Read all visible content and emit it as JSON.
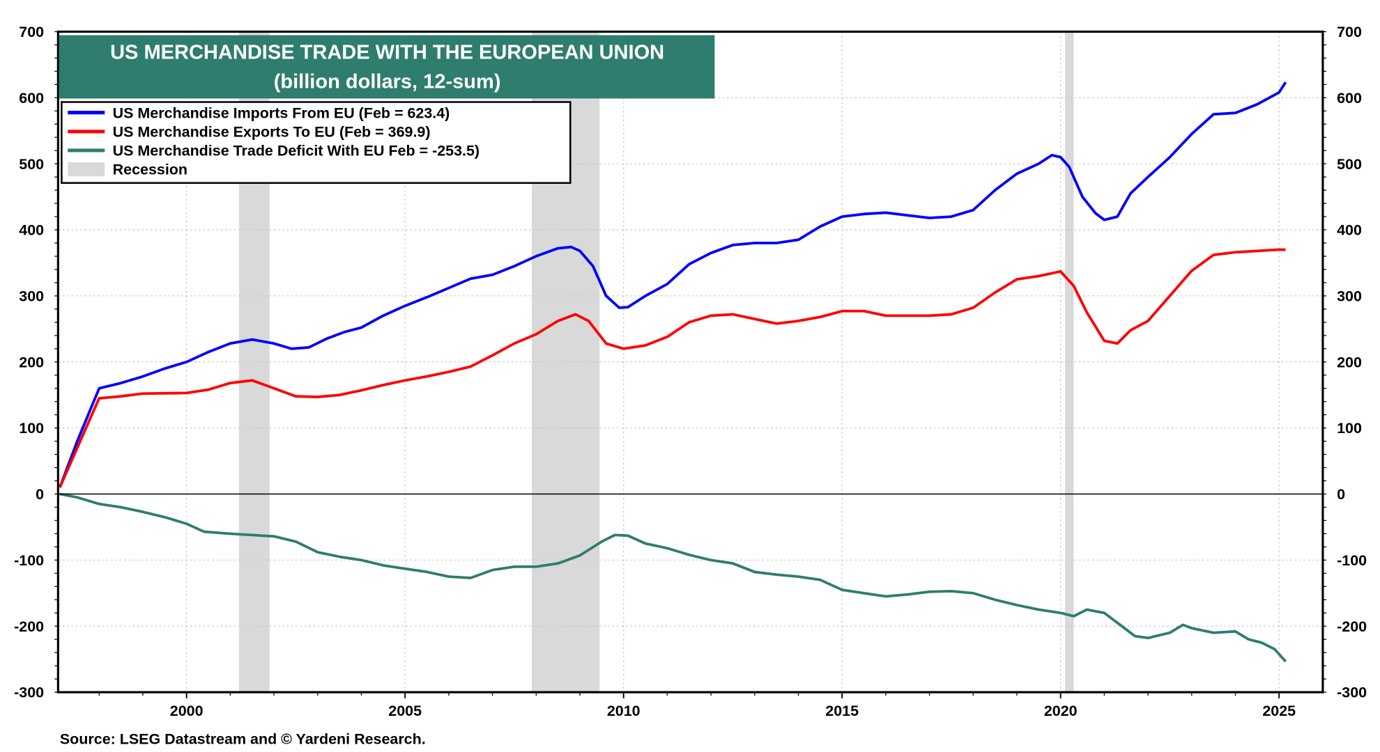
{
  "chart_data": {
    "type": "line",
    "title": "US MERCHANDISE TRADE WITH THE EUROPEAN UNION",
    "subtitle": "(billion dollars, 12-sum)",
    "source": "Source: LSEG Datastream and © Yardeni Research.",
    "xlim": [
      1997.06,
      2026.0
    ],
    "ylim": [
      -300,
      700
    ],
    "x_ticks": [
      2000,
      2005,
      2010,
      2015,
      2020,
      2025
    ],
    "y_ticks": [
      -300,
      -200,
      -100,
      0,
      100,
      200,
      300,
      400,
      500,
      600,
      700
    ],
    "grid": true,
    "legend_placement": "top-left",
    "colors": {
      "imports": "#0000ff",
      "exports": "#ff0000",
      "deficit": "#2e7d6e",
      "recession": "#d9d9d9",
      "title_bg": "#2e7d6e"
    },
    "recessions": [
      [
        2001.2,
        2001.9
      ],
      [
        2007.9,
        2009.45
      ],
      [
        2020.1,
        2020.3
      ]
    ],
    "legend": [
      {
        "key": "imports",
        "label": "US Merchandise Imports From EU (Feb = 623.4)"
      },
      {
        "key": "exports",
        "label": "US Merchandise Exports To EU (Feb = 369.9)"
      },
      {
        "key": "deficit",
        "label": "US Merchandise Trade Deficit With EU  Feb = -253.5)"
      },
      {
        "key": "recession",
        "label": "Recession"
      }
    ],
    "series": [
      {
        "name": "imports",
        "points": [
          [
            1997.1,
            10
          ],
          [
            1997.5,
            80
          ],
          [
            1998.0,
            160
          ],
          [
            1998.5,
            168
          ],
          [
            1999.0,
            178
          ],
          [
            1999.5,
            190
          ],
          [
            2000.0,
            200
          ],
          [
            2000.5,
            215
          ],
          [
            2001.0,
            228
          ],
          [
            2001.5,
            234
          ],
          [
            2002.0,
            228
          ],
          [
            2002.4,
            220
          ],
          [
            2002.8,
            222
          ],
          [
            2003.2,
            235
          ],
          [
            2003.6,
            245
          ],
          [
            2004.0,
            252
          ],
          [
            2004.5,
            270
          ],
          [
            2005.0,
            285
          ],
          [
            2005.5,
            298
          ],
          [
            2006.0,
            312
          ],
          [
            2006.5,
            326
          ],
          [
            2007.0,
            332
          ],
          [
            2007.5,
            345
          ],
          [
            2008.0,
            360
          ],
          [
            2008.5,
            372
          ],
          [
            2008.8,
            374
          ],
          [
            2009.0,
            368
          ],
          [
            2009.3,
            345
          ],
          [
            2009.6,
            300
          ],
          [
            2009.9,
            282
          ],
          [
            2010.1,
            283
          ],
          [
            2010.5,
            300
          ],
          [
            2011.0,
            318
          ],
          [
            2011.5,
            348
          ],
          [
            2012.0,
            365
          ],
          [
            2012.5,
            377
          ],
          [
            2013.0,
            380
          ],
          [
            2013.5,
            380
          ],
          [
            2014.0,
            385
          ],
          [
            2014.5,
            405
          ],
          [
            2015.0,
            420
          ],
          [
            2015.5,
            424
          ],
          [
            2016.0,
            426
          ],
          [
            2016.5,
            422
          ],
          [
            2017.0,
            418
          ],
          [
            2017.5,
            420
          ],
          [
            2018.0,
            430
          ],
          [
            2018.5,
            460
          ],
          [
            2019.0,
            485
          ],
          [
            2019.5,
            500
          ],
          [
            2019.8,
            513
          ],
          [
            2020.0,
            510
          ],
          [
            2020.2,
            495
          ],
          [
            2020.5,
            450
          ],
          [
            2020.8,
            425
          ],
          [
            2021.0,
            415
          ],
          [
            2021.3,
            420
          ],
          [
            2021.6,
            455
          ],
          [
            2022.0,
            480
          ],
          [
            2022.5,
            510
          ],
          [
            2023.0,
            545
          ],
          [
            2023.5,
            575
          ],
          [
            2024.0,
            577
          ],
          [
            2024.5,
            590
          ],
          [
            2025.0,
            608
          ],
          [
            2025.15,
            623.4
          ]
        ]
      },
      {
        "name": "exports",
        "points": [
          [
            1997.1,
            10
          ],
          [
            1997.5,
            70
          ],
          [
            1998.0,
            145
          ],
          [
            1998.5,
            148
          ],
          [
            1999.0,
            152
          ],
          [
            2000.0,
            153
          ],
          [
            2000.5,
            158
          ],
          [
            2001.0,
            168
          ],
          [
            2001.5,
            172
          ],
          [
            2002.0,
            160
          ],
          [
            2002.5,
            148
          ],
          [
            2003.0,
            147
          ],
          [
            2003.5,
            150
          ],
          [
            2004.0,
            157
          ],
          [
            2004.5,
            165
          ],
          [
            2005.0,
            172
          ],
          [
            2005.5,
            178
          ],
          [
            2006.0,
            185
          ],
          [
            2006.5,
            193
          ],
          [
            2007.0,
            210
          ],
          [
            2007.5,
            228
          ],
          [
            2008.0,
            242
          ],
          [
            2008.5,
            262
          ],
          [
            2008.9,
            272
          ],
          [
            2009.2,
            262
          ],
          [
            2009.6,
            228
          ],
          [
            2010.0,
            220
          ],
          [
            2010.5,
            225
          ],
          [
            2011.0,
            238
          ],
          [
            2011.5,
            260
          ],
          [
            2012.0,
            270
          ],
          [
            2012.5,
            272
          ],
          [
            2013.0,
            265
          ],
          [
            2013.5,
            258
          ],
          [
            2014.0,
            262
          ],
          [
            2014.5,
            268
          ],
          [
            2015.0,
            277
          ],
          [
            2015.5,
            277
          ],
          [
            2016.0,
            270
          ],
          [
            2016.5,
            270
          ],
          [
            2017.0,
            270
          ],
          [
            2017.5,
            272
          ],
          [
            2018.0,
            282
          ],
          [
            2018.5,
            305
          ],
          [
            2019.0,
            325
          ],
          [
            2019.5,
            330
          ],
          [
            2020.0,
            337
          ],
          [
            2020.3,
            315
          ],
          [
            2020.6,
            275
          ],
          [
            2021.0,
            232
          ],
          [
            2021.3,
            228
          ],
          [
            2021.6,
            248
          ],
          [
            2022.0,
            262
          ],
          [
            2022.5,
            300
          ],
          [
            2023.0,
            338
          ],
          [
            2023.5,
            362
          ],
          [
            2024.0,
            366
          ],
          [
            2024.5,
            368
          ],
          [
            2025.0,
            370
          ],
          [
            2025.15,
            369.9
          ]
        ]
      },
      {
        "name": "deficit",
        "points": [
          [
            1997.1,
            0
          ],
          [
            1997.5,
            -5
          ],
          [
            1998.0,
            -15
          ],
          [
            1998.5,
            -20
          ],
          [
            1999.0,
            -27
          ],
          [
            1999.5,
            -35
          ],
          [
            2000.0,
            -45
          ],
          [
            2000.4,
            -57
          ],
          [
            2001.0,
            -60
          ],
          [
            2001.5,
            -62
          ],
          [
            2002.0,
            -64
          ],
          [
            2002.5,
            -72
          ],
          [
            2003.0,
            -88
          ],
          [
            2003.5,
            -95
          ],
          [
            2004.0,
            -100
          ],
          [
            2004.5,
            -108
          ],
          [
            2005.0,
            -113
          ],
          [
            2005.5,
            -118
          ],
          [
            2006.0,
            -125
          ],
          [
            2006.5,
            -127
          ],
          [
            2007.0,
            -115
          ],
          [
            2007.5,
            -110
          ],
          [
            2008.0,
            -110
          ],
          [
            2008.5,
            -105
          ],
          [
            2009.0,
            -93
          ],
          [
            2009.5,
            -72
          ],
          [
            2009.8,
            -62
          ],
          [
            2010.1,
            -63
          ],
          [
            2010.5,
            -75
          ],
          [
            2011.0,
            -82
          ],
          [
            2011.5,
            -92
          ],
          [
            2012.0,
            -100
          ],
          [
            2012.5,
            -105
          ],
          [
            2013.0,
            -118
          ],
          [
            2013.5,
            -122
          ],
          [
            2014.0,
            -125
          ],
          [
            2014.5,
            -130
          ],
          [
            2015.0,
            -145
          ],
          [
            2015.5,
            -150
          ],
          [
            2016.0,
            -155
          ],
          [
            2016.5,
            -152
          ],
          [
            2017.0,
            -148
          ],
          [
            2017.5,
            -147
          ],
          [
            2018.0,
            -150
          ],
          [
            2018.5,
            -160
          ],
          [
            2019.0,
            -168
          ],
          [
            2019.5,
            -175
          ],
          [
            2020.0,
            -180
          ],
          [
            2020.3,
            -185
          ],
          [
            2020.6,
            -175
          ],
          [
            2021.0,
            -180
          ],
          [
            2021.3,
            -195
          ],
          [
            2021.7,
            -215
          ],
          [
            2022.0,
            -218
          ],
          [
            2022.5,
            -210
          ],
          [
            2022.8,
            -198
          ],
          [
            2023.0,
            -203
          ],
          [
            2023.5,
            -210
          ],
          [
            2024.0,
            -208
          ],
          [
            2024.3,
            -220
          ],
          [
            2024.6,
            -225
          ],
          [
            2024.9,
            -235
          ],
          [
            2025.15,
            -253.5
          ]
        ]
      }
    ]
  }
}
